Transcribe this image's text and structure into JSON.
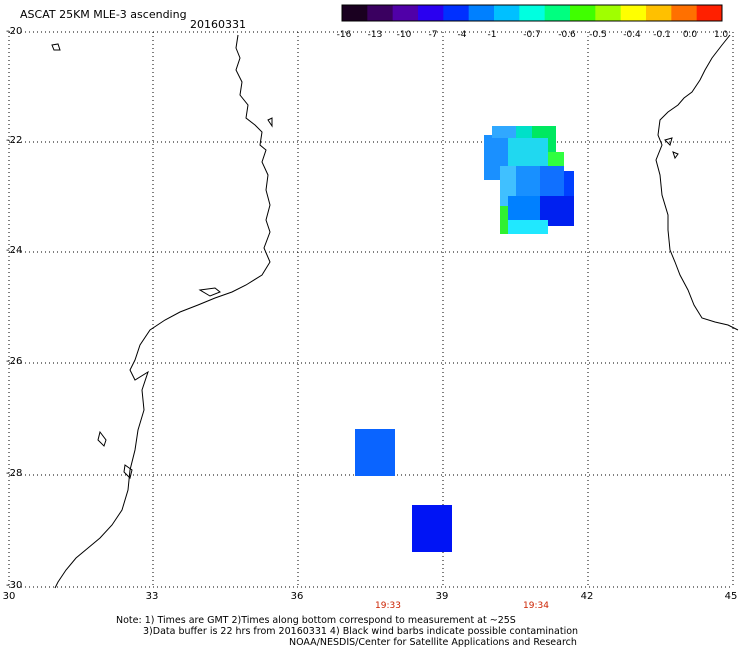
{
  "header": {
    "title": "ASCAT 25KM MLE-3 ascending",
    "date": "20160331"
  },
  "colorbar": {
    "colors": [
      "#1a0020",
      "#3a0060",
      "#5000a8",
      "#2a00f0",
      "#0030ff",
      "#0080ff",
      "#00c0ff",
      "#00ffe0",
      "#00ff80",
      "#40ff00",
      "#a0ff00",
      "#ffff00",
      "#ffc000",
      "#ff7000",
      "#ff2000"
    ],
    "labels": [
      "-16",
      "-13",
      "-10",
      "-7",
      "-4",
      "-1",
      "-0.7",
      "-0.6",
      "-0.5",
      "-0.4",
      "-0.1",
      "0.0",
      "1.0"
    ]
  },
  "axes": {
    "x_ticks": [
      "30",
      "33",
      "36",
      "39",
      "42",
      "45"
    ],
    "y_ticks": [
      "-20",
      "-22",
      "-24",
      "-26",
      "-28",
      "-30"
    ]
  },
  "times": [
    "19:33",
    "19:34"
  ],
  "notes": {
    "line1": "Note: 1) Times are GMT 2)Times along bottom correspond to measurement at ~25S",
    "line2": "3)Data buffer is 22 hrs from 20160331 4) Black wind barbs indicate possible contamination",
    "line3": "NOAA/NESDIS/Center for Satellite Applications and Research"
  }
}
